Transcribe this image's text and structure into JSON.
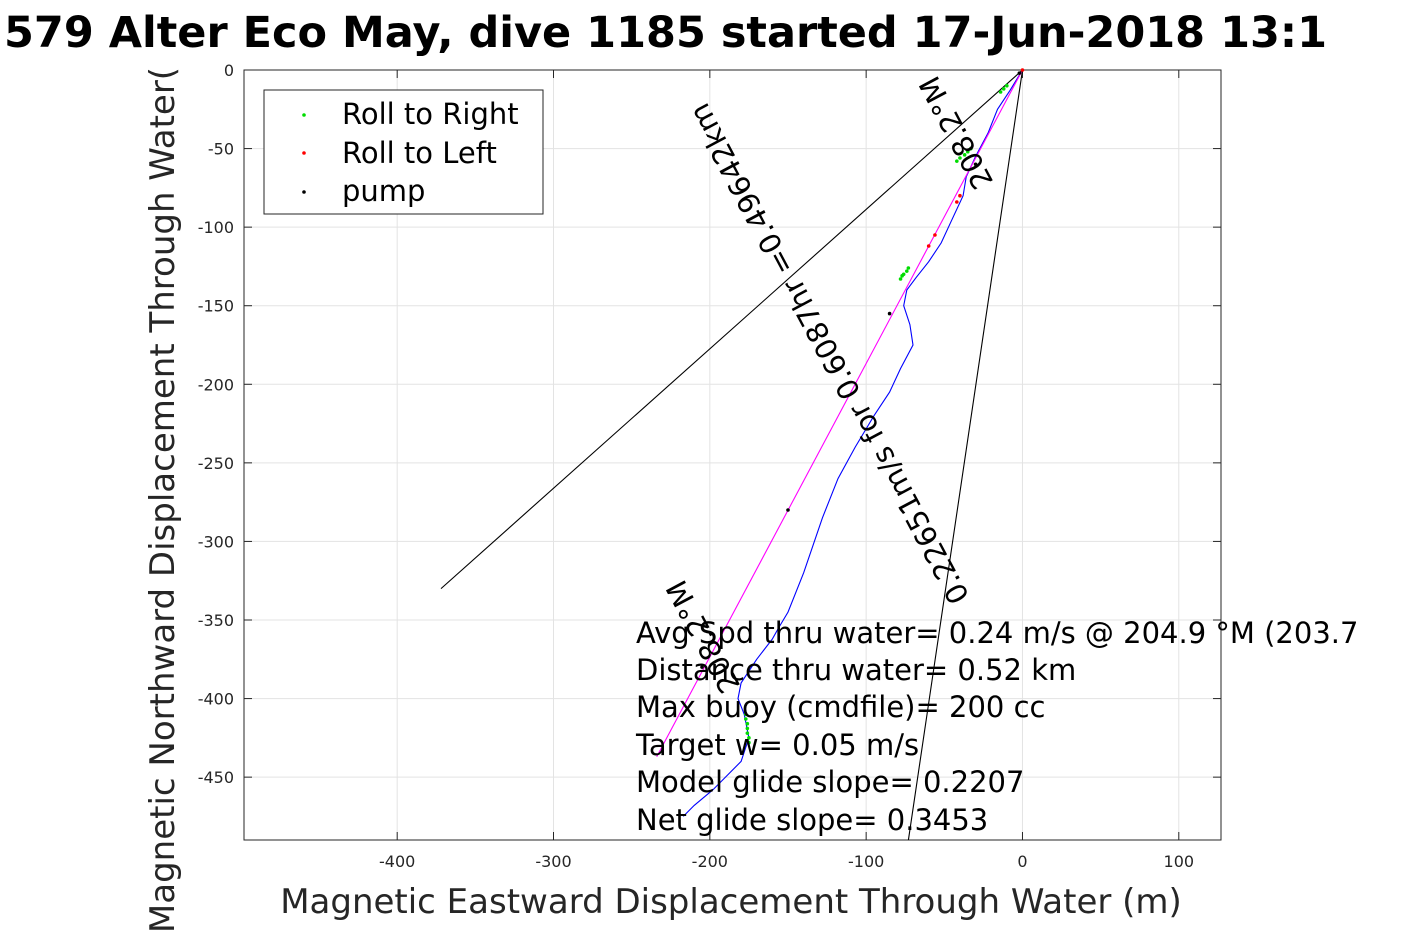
{
  "chart_data": {
    "type": "line",
    "title": "579 Alter Eco May, dive 1185 started 17-Jun-2018 13:1",
    "xlabel": "Magnetic Eastward Displacement Through Water (m)",
    "ylabel": "Magnetic Northward Displacement Through Water(",
    "xlim": [
      -498,
      127
    ],
    "ylim": [
      -490,
      0
    ],
    "xticks": [
      -400,
      -300,
      -200,
      -100,
      0,
      100
    ],
    "xtick_labels": [
      "-400",
      "-300",
      "-200",
      "-100",
      "0",
      "100"
    ],
    "yticks": [
      0,
      -50,
      -100,
      -150,
      -200,
      -250,
      -300,
      -350,
      -400,
      -450
    ],
    "ytick_labels": [
      "0",
      "-50",
      "-100",
      "-150",
      "-200",
      "-250",
      "-300",
      "-350",
      "-400",
      "-450"
    ],
    "grid": true,
    "legend": {
      "placement": "top-left",
      "entries": [
        {
          "label": "Roll to Right",
          "color": "#00dd00"
        },
        {
          "label": "Roll to Left",
          "color": "#ff0000"
        },
        {
          "label": "pump",
          "color": "#000000"
        }
      ]
    },
    "series": [
      {
        "kind": "track",
        "color": "#0000ff",
        "x": [
          0,
          -8,
          -16,
          -22,
          -30,
          -36,
          -38,
          -45,
          -52,
          -60,
          -68,
          -74,
          -76,
          -72,
          -70,
          -78,
          -85,
          -95,
          -107,
          -118,
          -128,
          -140,
          -150,
          -156,
          -160,
          -170,
          -180,
          -182,
          -178,
          -175,
          -180,
          -190,
          -198,
          -210,
          -217
        ],
        "y": [
          0,
          -13,
          -25,
          -40,
          -55,
          -68,
          -80,
          -95,
          -110,
          -122,
          -132,
          -140,
          -150,
          -162,
          -175,
          -190,
          -205,
          -220,
          -240,
          -260,
          -285,
          -320,
          -345,
          -355,
          -362,
          -375,
          -390,
          -400,
          -410,
          -425,
          -440,
          -450,
          -458,
          -468,
          -475
        ]
      },
      {
        "kind": "heading-line",
        "color": "#ff00ff",
        "x": [
          0,
          -234
        ],
        "y": [
          0,
          -437
        ]
      },
      {
        "kind": "model-line",
        "color": "#000000",
        "x": [
          0,
          -73
        ],
        "y": [
          0,
          -490
        ]
      },
      {
        "kind": "current-line",
        "color": "#000000",
        "x": [
          0,
          -372
        ],
        "y": [
          0,
          -330
        ]
      }
    ],
    "markers": {
      "roll_right": {
        "color": "#00dd00",
        "x": [
          -10,
          -12,
          -14,
          -33,
          -35,
          -37,
          -40,
          -42,
          -73,
          -74,
          -76,
          -77,
          -78,
          -177,
          -177,
          -176,
          -176,
          -176,
          -175,
          -175
        ],
        "y": [
          -10,
          -12,
          -14,
          -50,
          -52,
          -54,
          -56,
          -58,
          -126,
          -128,
          -130,
          -131,
          -133,
          -410,
          -413,
          -416,
          -419,
          -422,
          -425,
          -428
        ]
      },
      "roll_left": {
        "color": "#ff0000",
        "x": [
          0,
          -40,
          -42,
          -56,
          -60
        ],
        "y": [
          0,
          -80,
          -84,
          -105,
          -112
        ]
      },
      "pump": {
        "color": "#000000",
        "x": [
          -2,
          -30,
          -85,
          -150,
          -205
        ],
        "y": [
          -2,
          -60,
          -155,
          -280,
          -380
        ]
      }
    },
    "annotations": {
      "rotated_labels": [
        {
          "text": "208.2°M",
          "rotation": 242
        },
        {
          "text": "0.22651m/s for 0.6087hr =0.49642km",
          "rotation": 242
        },
        {
          "text": "208.2°M",
          "rotation": 242
        }
      ],
      "stats_lines": [
        "Avg Spd thru water=  0.24 m/s @ 204.9 °M (203.7",
        "Distance thru water=  0.52 km",
        "Max buoy (cmdfile)= 200 cc",
        "Target w= 0.05 m/s",
        "Model glide slope= 0.2207",
        "Net glide slope= 0.3453"
      ]
    }
  }
}
